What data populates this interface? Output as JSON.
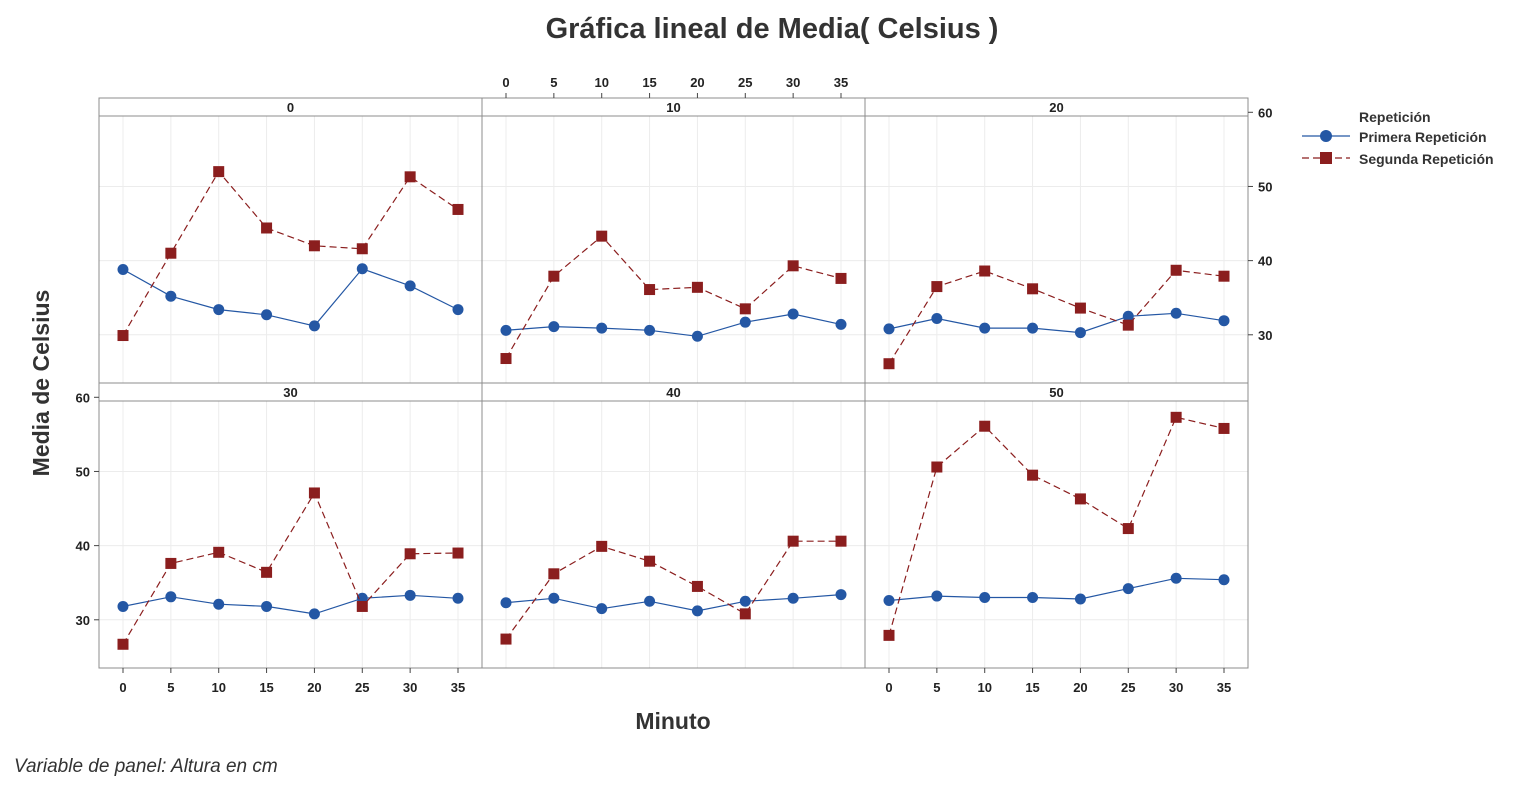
{
  "title": "Gráfica lineal de Media( Celsius )",
  "xlabel": "Minuto",
  "ylabel": "Media de Celsius",
  "footnote": "Variable de panel: Altura en cm",
  "legend": {
    "title": "Repetición",
    "entries": [
      "Primera Repetición",
      "Segunda Repetición"
    ]
  },
  "colors": {
    "primera": "#2457a4",
    "segunda": "#8b1e1e",
    "frame": "#8c8c8c",
    "grid": "#ececec"
  },
  "chart_data": {
    "type": "line",
    "x": [
      0,
      5,
      10,
      15,
      20,
      25,
      30,
      35
    ],
    "x_ticks": [
      "0",
      "5",
      "10",
      "15",
      "20",
      "25",
      "30",
      "35"
    ],
    "y_ticks": [
      "30",
      "40",
      "50",
      "60"
    ],
    "ylim": [
      23.5,
      59.5
    ],
    "xlim": [
      -2,
      37
    ],
    "legend_position": "top-right",
    "grid": true,
    "panel_variable": "Altura en cm",
    "panels": [
      {
        "label": "0",
        "series": [
          {
            "name": "Primera Repetición",
            "values": [
              38.8,
              35.2,
              33.4,
              32.7,
              31.2,
              38.9,
              36.6,
              33.4
            ]
          },
          {
            "name": "Segunda Repetición",
            "values": [
              29.9,
              41.0,
              52.0,
              44.4,
              42.0,
              41.6,
              51.3,
              46.9
            ]
          }
        ]
      },
      {
        "label": "10",
        "series": [
          {
            "name": "Primera Repetición",
            "values": [
              30.6,
              31.1,
              30.9,
              30.6,
              29.8,
              31.7,
              32.8,
              31.4
            ]
          },
          {
            "name": "Segunda Repetición",
            "values": [
              26.8,
              37.9,
              43.3,
              36.1,
              36.4,
              33.5,
              39.3,
              37.6
            ]
          }
        ]
      },
      {
        "label": "20",
        "series": [
          {
            "name": "Primera Repetición",
            "values": [
              30.8,
              32.2,
              30.9,
              30.9,
              30.3,
              32.5,
              32.9,
              31.9
            ]
          },
          {
            "name": "Segunda Repetición",
            "values": [
              26.1,
              36.5,
              38.6,
              36.2,
              33.6,
              31.3,
              38.7,
              37.9
            ]
          }
        ]
      },
      {
        "label": "30",
        "series": [
          {
            "name": "Primera Repetición",
            "values": [
              31.8,
              33.1,
              32.1,
              31.8,
              30.8,
              32.9,
              33.3,
              32.9
            ]
          },
          {
            "name": "Segunda Repetición",
            "values": [
              26.7,
              37.6,
              39.1,
              36.4,
              47.1,
              31.8,
              38.9,
              39.0
            ]
          }
        ]
      },
      {
        "label": "40",
        "series": [
          {
            "name": "Primera Repetición",
            "values": [
              32.3,
              32.9,
              31.5,
              32.5,
              31.2,
              32.5,
              32.9,
              33.4
            ]
          },
          {
            "name": "Segunda Repetición",
            "values": [
              27.4,
              36.2,
              39.9,
              37.9,
              34.5,
              30.8,
              40.6,
              40.6
            ]
          }
        ]
      },
      {
        "label": "50",
        "series": [
          {
            "name": "Primera Repetición",
            "values": [
              32.6,
              33.2,
              33.0,
              33.0,
              32.8,
              34.2,
              35.6,
              35.4
            ]
          },
          {
            "name": "Segunda Repetición",
            "values": [
              27.9,
              50.6,
              56.1,
              49.5,
              46.3,
              42.3,
              57.3,
              55.8
            ]
          }
        ]
      }
    ]
  }
}
